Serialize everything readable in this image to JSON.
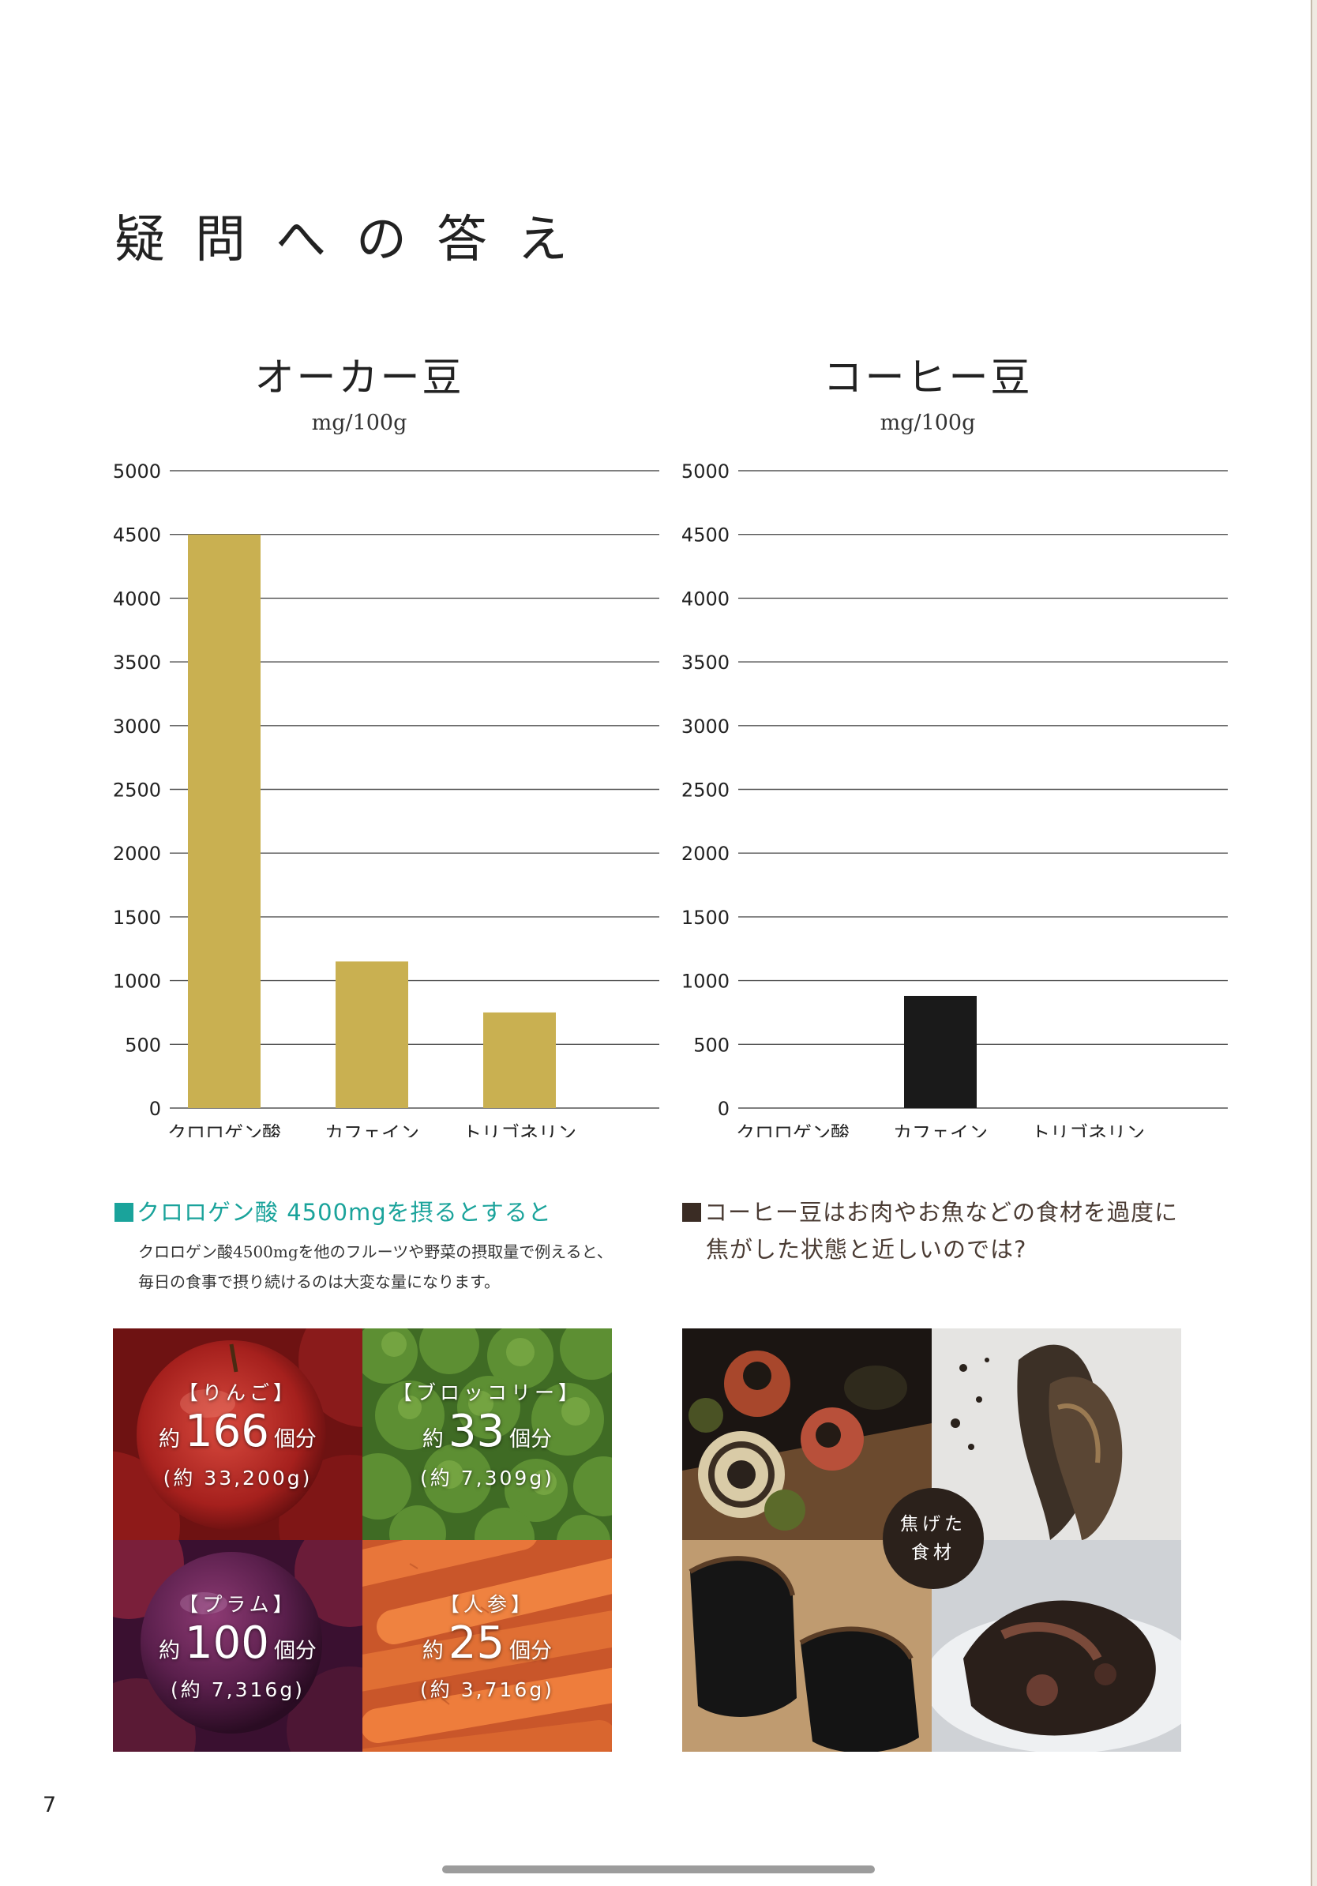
{
  "page_title": "疑問への答え",
  "page_number": "7",
  "colors": {
    "gold_bar": "#c9b051",
    "coffee_bar": "#1a1a1a",
    "teal": "#1aa39b",
    "brown": "#4a3b33",
    "badge": "#2b211b"
  },
  "chart_data": [
    {
      "type": "bar",
      "title": "オーカー豆",
      "ylabel": "mg/100g",
      "categories": [
        "クロロゲン酸",
        "カフェイン",
        "トリゴネリン"
      ],
      "values": [
        4500,
        1150,
        750
      ],
      "ylim": [
        0,
        5000
      ],
      "yticks": [
        "0",
        "500",
        "1000",
        "1500",
        "2000",
        "2500",
        "3000",
        "3500",
        "4000",
        "4500",
        "5000"
      ],
      "grid": true,
      "color": "#c9b051"
    },
    {
      "type": "bar",
      "title": "コーヒー豆",
      "ylabel": "mg/100g",
      "categories": [
        "クロロゲン酸",
        "カフェイン",
        "トリゴネリン"
      ],
      "values": [
        0,
        880,
        0
      ],
      "ylim": [
        0,
        5000
      ],
      "yticks": [
        "0",
        "500",
        "1000",
        "1500",
        "2000",
        "2500",
        "3000",
        "3500",
        "4000",
        "4500",
        "5000"
      ],
      "grid": true,
      "color": "#1a1a1a"
    }
  ],
  "left_section": {
    "heading": "クロロゲン酸 4500mgを摂るとすると",
    "body_line1": "クロロゲン酸4500mgを他のフルーツや野菜の摂取量で例えると、",
    "body_line2": "毎日の食事で摂り続けるのは大変な量になります。"
  },
  "right_section": {
    "heading_line1": "コーヒー豆はお肉やお魚などの食材を過度に",
    "heading_line2": "焦がした状態と近しいのでは?"
  },
  "tiles": [
    {
      "name": "【りんご】",
      "prefix": "約",
      "count": "166",
      "suffix": "個分",
      "grams": "(約 33,200g)",
      "image": "apple-photo"
    },
    {
      "name": "【ブロッコリー】",
      "prefix": "約",
      "count": "33",
      "suffix": "個分",
      "grams": "(約 7,309g)",
      "image": "broccoli-photo"
    },
    {
      "name": "【プラム】",
      "prefix": "約",
      "count": "100",
      "suffix": "個分",
      "grams": "(約 7,316g)",
      "image": "plum-photo"
    },
    {
      "name": "【人参】",
      "prefix": "約",
      "count": "25",
      "suffix": "個分",
      "grams": "(約 3,716g)",
      "image": "carrot-photo"
    }
  ],
  "burnt_badge": {
    "line1": "焦げた",
    "line2": "食材"
  },
  "photos": [
    "burnt-vegetables-photo",
    "burnt-fish-photo",
    "burnt-toast-photo",
    "burnt-meat-photo"
  ]
}
